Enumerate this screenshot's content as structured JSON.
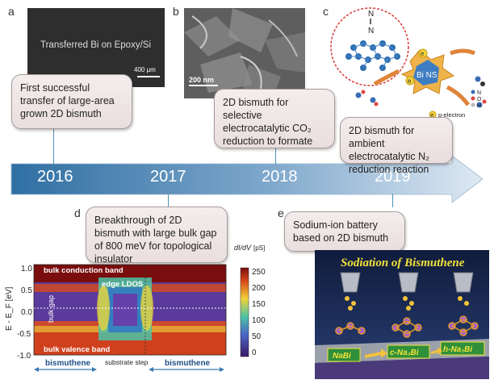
{
  "panels": {
    "a": {
      "letter": "a",
      "image_caption": "Transferred Bi on Epoxy/Si",
      "scale_bar": "400 μm",
      "callout": "First successful transfer of large-area grown 2D bismuth"
    },
    "b": {
      "letter": "b",
      "scale_bar": "200 nm",
      "callout": "2D bismuth for selective electrocatalytic CO₂ reduction to formate"
    },
    "c": {
      "letter": "c",
      "center_label": "Bi NS",
      "atom_label": "N",
      "legend": [
        "N",
        "O",
        "H"
      ],
      "electron_label": "p-electron",
      "electron_symbol": "e",
      "callout": "2D bismuth for ambient electrocatalytic N₂ reduction reaction"
    },
    "d": {
      "letter": "d",
      "callout": "Breakthrough of 2D bismuth with large bulk gap of 800 meV for topological insulator",
      "plot": {
        "ylabel": "E - E_F [eV]",
        "yticks": [
          "1.0",
          "0.5",
          "0.0",
          "-0.5",
          "-1.0"
        ],
        "colorbar_title": "dI/dV",
        "colorbar_unit": "[pS]",
        "colorbar_ticks": [
          "250",
          "200",
          "150",
          "100",
          "50",
          "0"
        ],
        "labels": {
          "top": "bulk conduction band",
          "edge": "edge LDOS",
          "gap": "bulk gap",
          "bottom": "bulk valence band"
        },
        "regions": [
          "bismuthene",
          "substrate step",
          "bismuthene"
        ]
      }
    },
    "e": {
      "letter": "e",
      "callout": "Sodium-ion battery based on 2D bismuth",
      "image_title": "Sodiation of Bismuthene",
      "phases": [
        "NaBi",
        "c-Na₃Bi",
        "h-Na₃Bi"
      ]
    }
  },
  "timeline": {
    "years": [
      "2016",
      "2017",
      "2018",
      "2019"
    ],
    "colors": {
      "arrow_start": "#2f6fa3",
      "arrow_end": "#d7e5f2",
      "callout_border": "#a89a9a"
    }
  }
}
